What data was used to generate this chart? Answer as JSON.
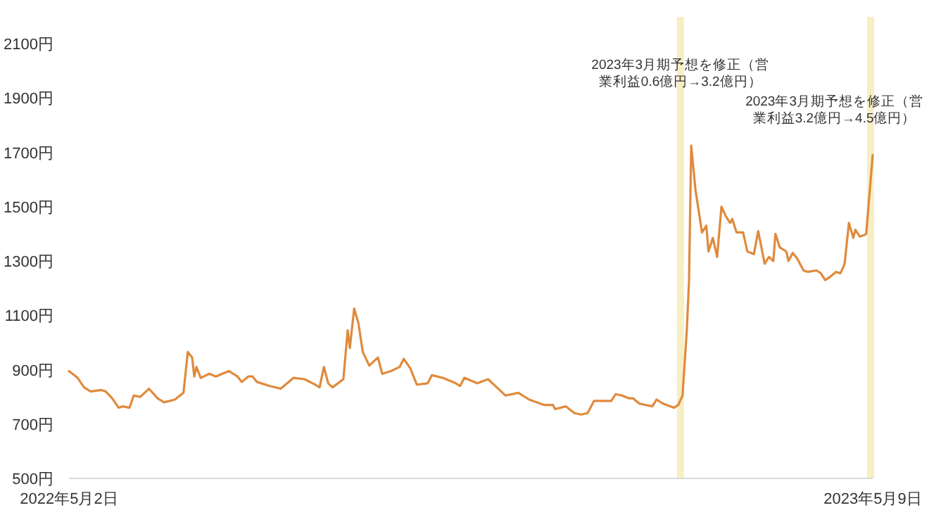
{
  "chart_data": {
    "type": "line",
    "color": "#e08a3c",
    "grid": false,
    "x": [
      "2022-05-02",
      "2022-05-06",
      "2022-05-09",
      "2022-05-12",
      "2022-05-17",
      "2022-05-19",
      "2022-05-22",
      "2022-05-25",
      "2022-05-27",
      "2022-05-30",
      "2022-06-01",
      "2022-06-04",
      "2022-06-08",
      "2022-06-12",
      "2022-06-15",
      "2022-06-20",
      "2022-06-24",
      "2022-06-26",
      "2022-06-28",
      "2022-06-29",
      "2022-06-30",
      "2022-07-02",
      "2022-07-06",
      "2022-07-09",
      "2022-07-12",
      "2022-07-15",
      "2022-07-19",
      "2022-07-21",
      "2022-07-24",
      "2022-07-26",
      "2022-07-28",
      "2022-08-03",
      "2022-08-08",
      "2022-08-14",
      "2022-08-19",
      "2022-08-24",
      "2022-08-26",
      "2022-08-28",
      "2022-08-30",
      "2022-09-01",
      "2022-09-06",
      "2022-09-08",
      "2022-09-09",
      "2022-09-11",
      "2022-09-13",
      "2022-09-15",
      "2022-09-18",
      "2022-09-22",
      "2022-09-24",
      "2022-09-28",
      "2022-10-02",
      "2022-10-04",
      "2022-10-07",
      "2022-10-10",
      "2022-10-15",
      "2022-10-17",
      "2022-10-22",
      "2022-10-28",
      "2022-10-30",
      "2022-11-01",
      "2022-11-07",
      "2022-11-12",
      "2022-11-16",
      "2022-11-20",
      "2022-11-26",
      "2022-12-01",
      "2022-12-08",
      "2022-12-12",
      "2022-12-13",
      "2022-12-18",
      "2022-12-22",
      "2022-12-25",
      "2022-12-28",
      "2022-12-31",
      "2023-01-04",
      "2023-01-08",
      "2023-01-10",
      "2023-01-13",
      "2023-01-16",
      "2023-01-18",
      "2023-01-21",
      "2023-01-27",
      "2023-01-29",
      "2023-02-01",
      "2023-02-06",
      "2023-02-08",
      "2023-02-10",
      "2023-02-12",
      "2023-02-13",
      "2023-02-14",
      "2023-02-16",
      "2023-02-19",
      "2023-02-21",
      "2023-02-22",
      "2023-02-24",
      "2023-02-26",
      "2023-02-28",
      "2023-03-02",
      "2023-03-04",
      "2023-03-05",
      "2023-03-07",
      "2023-03-10",
      "2023-03-12",
      "2023-03-15",
      "2023-03-17",
      "2023-03-20",
      "2023-03-22",
      "2023-03-24",
      "2023-03-25",
      "2023-03-27",
      "2023-03-30",
      "2023-03-31",
      "2023-04-02",
      "2023-04-04",
      "2023-04-07",
      "2023-04-09",
      "2023-04-13",
      "2023-04-15",
      "2023-04-17",
      "2023-04-19",
      "2023-04-22",
      "2023-04-24",
      "2023-04-25",
      "2023-04-26",
      "2023-04-28",
      "2023-04-30",
      "2023-05-01",
      "2023-05-03",
      "2023-05-05",
      "2023-05-06",
      "2023-05-09"
    ],
    "values": [
      895,
      870,
      835,
      820,
      825,
      820,
      795,
      760,
      765,
      760,
      805,
      800,
      830,
      795,
      780,
      790,
      815,
      965,
      945,
      875,
      910,
      870,
      885,
      875,
      885,
      895,
      875,
      855,
      875,
      875,
      855,
      840,
      830,
      870,
      865,
      845,
      835,
      910,
      850,
      835,
      865,
      1045,
      980,
      1125,
      1070,
      965,
      915,
      945,
      885,
      895,
      910,
      940,
      905,
      845,
      850,
      880,
      870,
      850,
      840,
      870,
      850,
      865,
      835,
      805,
      815,
      790,
      770,
      770,
      755,
      765,
      740,
      735,
      740,
      785,
      785,
      785,
      810,
      805,
      795,
      795,
      775,
      765,
      790,
      775,
      760,
      770,
      805,
      1050,
      1230,
      1725,
      1560,
      1405,
      1430,
      1335,
      1385,
      1315,
      1500,
      1465,
      1440,
      1455,
      1405,
      1405,
      1335,
      1325,
      1410,
      1290,
      1315,
      1300,
      1400,
      1350,
      1335,
      1300,
      1330,
      1310,
      1265,
      1260,
      1265,
      1255,
      1230,
      1240,
      1260,
      1255,
      1270,
      1290,
      1440,
      1385,
      1415,
      1390,
      1395,
      1400,
      1690
    ],
    "xlim": [
      "2022-05-02",
      "2023-05-09"
    ],
    "xticks": [
      {
        "value": "2022-05-02",
        "label": "2022年5月2日"
      },
      {
        "value": "2023-05-09",
        "label": "2023年5月9日"
      }
    ],
    "ylim": [
      500,
      2100
    ],
    "yticks": [
      {
        "value": 500,
        "label": "500円"
      },
      {
        "value": 700,
        "label": "700円"
      },
      {
        "value": 900,
        "label": "900円"
      },
      {
        "value": 1100,
        "label": "1100円"
      },
      {
        "value": 1300,
        "label": "1300円"
      },
      {
        "value": 1500,
        "label": "1500円"
      },
      {
        "value": 1700,
        "label": "1700円"
      },
      {
        "value": 1900,
        "label": "1900円"
      },
      {
        "value": 2100,
        "label": "2100円"
      }
    ],
    "ref_lines": [
      {
        "axis": "x",
        "value": "2023-02-09",
        "label": "2023年3月期予想を修正（営業利益0.6億円→3.2億円）",
        "color": "#f8eec4"
      },
      {
        "axis": "x",
        "value": "2023-05-08",
        "label": "2023年3月期予想を修正（営業利益3.2億円→4.5億円）",
        "color": "#f8eec4"
      }
    ]
  }
}
